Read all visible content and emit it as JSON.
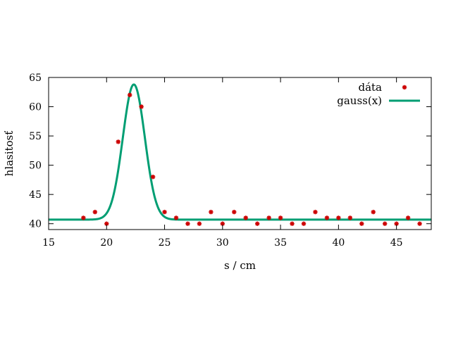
{
  "chart_data": {
    "type": "scatter",
    "title": "",
    "xlabel": "s / cm",
    "ylabel": "hlasitosť",
    "xlim": [
      15,
      48
    ],
    "ylim": [
      39,
      65
    ],
    "xticks": [
      15,
      20,
      25,
      30,
      35,
      40,
      45
    ],
    "yticks": [
      40,
      45,
      50,
      55,
      60,
      65
    ],
    "grid": false,
    "legend_position": "top-right",
    "series": [
      {
        "name": "dáta",
        "kind": "points",
        "color": "#cc0000",
        "x": [
          18,
          19,
          20,
          21,
          22,
          23,
          24,
          25,
          26,
          27,
          28,
          29,
          30,
          31,
          32,
          33,
          34,
          35,
          36,
          37,
          38,
          39,
          40,
          41,
          42,
          43,
          44,
          45,
          46,
          47
        ],
        "y": [
          41,
          42,
          40,
          54,
          62,
          60,
          48,
          42,
          41,
          40,
          40,
          42,
          40,
          42,
          41,
          40,
          41,
          41,
          40,
          40,
          42,
          41,
          41,
          41,
          40,
          42,
          40,
          40,
          41,
          40
        ]
      },
      {
        "name": "gauss(x)",
        "kind": "curve",
        "color": "#009e73",
        "function": "gaussian",
        "baseline": 40.7,
        "amplitude": 23.1,
        "center": 22.35,
        "sigma": 0.95
      }
    ]
  }
}
